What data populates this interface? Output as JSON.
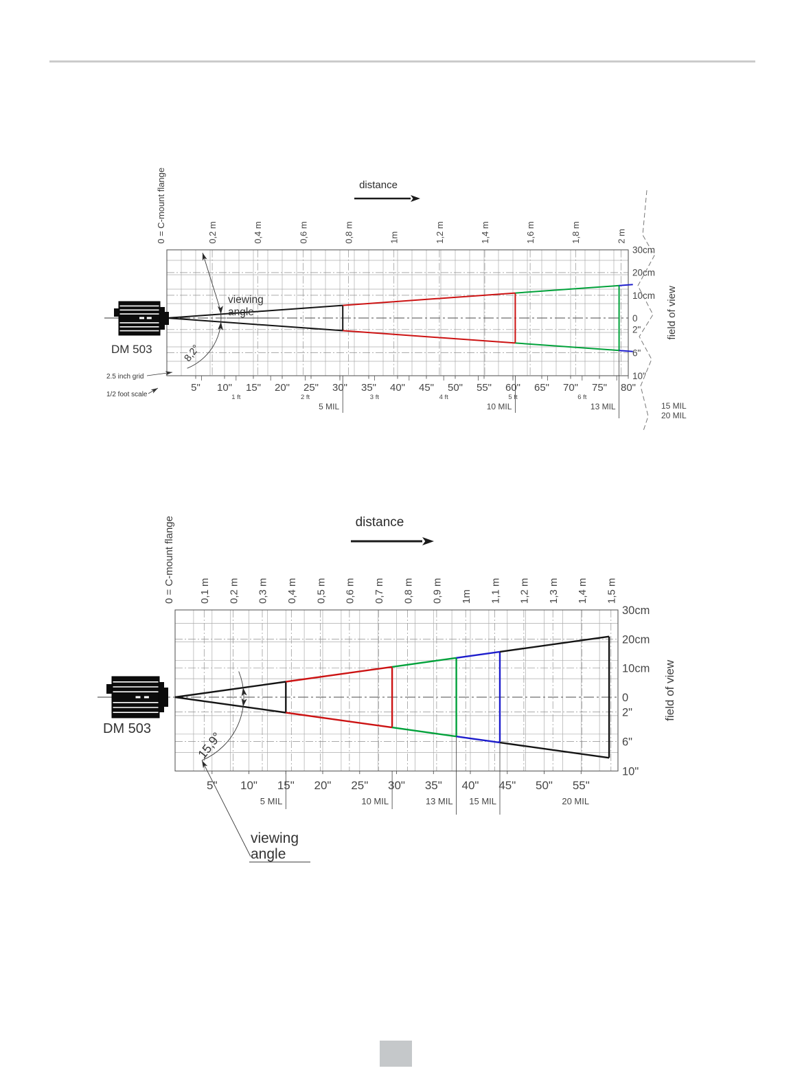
{
  "page": {
    "description": "Camera field-of-view diagrams page"
  },
  "chart_data": [
    {
      "type": "line",
      "name": "fov-diagram-0-2m",
      "camera_model": "DM 503",
      "flange_label": "0 = C-mount flange",
      "distance_label": "distance",
      "fov_label": "field of view",
      "viewing_angle_deg": 8.2,
      "viewing_angle_label": "8,2°",
      "viewing_angle_text": [
        "viewing",
        "angle"
      ],
      "notes": [
        "2.5 inch grid",
        "1/2 foot scale"
      ],
      "x_max_in": 80,
      "x_axis_m": [
        {
          "v": 0.2,
          "label": "0,2 m"
        },
        {
          "v": 0.4,
          "label": "0,4 m"
        },
        {
          "v": 0.6,
          "label": "0,6 m"
        },
        {
          "v": 0.8,
          "label": "0,8 m"
        },
        {
          "v": 1.0,
          "label": "1m"
        },
        {
          "v": 1.2,
          "label": "1,2 m"
        },
        {
          "v": 1.4,
          "label": "1,4 m"
        },
        {
          "v": 1.6,
          "label": "1,6 m"
        },
        {
          "v": 1.8,
          "label": "1,8 m"
        },
        {
          "v": 2.0,
          "label": "2 m"
        }
      ],
      "x_axis_in": [
        {
          "v": 5,
          "label": "5\""
        },
        {
          "v": 10,
          "label": "10\""
        },
        {
          "v": 15,
          "label": "15\""
        },
        {
          "v": 20,
          "label": "20\""
        },
        {
          "v": 25,
          "label": "25\""
        },
        {
          "v": 30,
          "label": "30\""
        },
        {
          "v": 35,
          "label": "35\""
        },
        {
          "v": 40,
          "label": "40\""
        },
        {
          "v": 45,
          "label": "45\""
        },
        {
          "v": 50,
          "label": "50\""
        },
        {
          "v": 55,
          "label": "55\""
        },
        {
          "v": 60,
          "label": "60\""
        },
        {
          "v": 65,
          "label": "65\""
        },
        {
          "v": 70,
          "label": "70\""
        },
        {
          "v": 75,
          "label": "75\""
        },
        {
          "v": 80,
          "label": "80\""
        }
      ],
      "ft_marks": [
        {
          "v": 12,
          "label": "1 ft"
        },
        {
          "v": 24,
          "label": "2 ft"
        },
        {
          "v": 36,
          "label": "3 ft"
        },
        {
          "v": 48,
          "label": "4 ft"
        },
        {
          "v": 60,
          "label": "5 ft"
        },
        {
          "v": 72,
          "label": "6 ft"
        }
      ],
      "y_axis": [
        {
          "cm": 30,
          "label": "30cm"
        },
        {
          "cm": 20,
          "label": "20cm"
        },
        {
          "cm": 10,
          "label": "10cm"
        },
        {
          "cm": 0,
          "label": "0"
        },
        {
          "cm": -5.08,
          "label": "2\""
        },
        {
          "cm": -15.24,
          "label": "6\""
        },
        {
          "cm": -25.4,
          "label": "10\""
        }
      ],
      "mil_segments": [
        {
          "label": "5 MIL",
          "to_in": 30.5,
          "color": "#141414",
          "end_vertical": true
        },
        {
          "label": "10 MIL",
          "to_in": 60.4,
          "color": "#cc1212",
          "end_vertical": true
        },
        {
          "label": "13 MIL",
          "to_in": 78.4,
          "color": "#00a13a",
          "end_vertical": true,
          "drop": true
        },
        {
          "label": null,
          "to_in": 80.8,
          "color": "#1d1dcc",
          "end_vertical": false
        }
      ],
      "mil_offchart": [
        "15 MIL",
        "20 MIL"
      ]
    },
    {
      "type": "line",
      "name": "fov-diagram-0-1.5m",
      "camera_model": "DM 503",
      "flange_label": "0 = C-mount flange",
      "distance_label": "distance",
      "fov_label": "field of view",
      "viewing_angle_deg": 15.9,
      "viewing_angle_label": "15,9°",
      "viewing_angle_text": [
        "viewing",
        "angle"
      ],
      "notes": [],
      "x_max_in": 60,
      "x_axis_m": [
        {
          "v": 0.1,
          "label": "0,1 m"
        },
        {
          "v": 0.2,
          "label": "0,2 m"
        },
        {
          "v": 0.3,
          "label": "0,3 m"
        },
        {
          "v": 0.4,
          "label": "0,4 m"
        },
        {
          "v": 0.5,
          "label": "0,5 m"
        },
        {
          "v": 0.6,
          "label": "0,6 m"
        },
        {
          "v": 0.7,
          "label": "0,7 m"
        },
        {
          "v": 0.8,
          "label": "0,8 m"
        },
        {
          "v": 0.9,
          "label": "0,9 m"
        },
        {
          "v": 1.0,
          "label": "1m"
        },
        {
          "v": 1.1,
          "label": "1,1 m"
        },
        {
          "v": 1.2,
          "label": "1,2 m"
        },
        {
          "v": 1.3,
          "label": "1,3 m"
        },
        {
          "v": 1.4,
          "label": "1,4 m"
        },
        {
          "v": 1.5,
          "label": "1,5 m"
        }
      ],
      "x_axis_in": [
        {
          "v": 5,
          "label": "5\""
        },
        {
          "v": 10,
          "label": "10\""
        },
        {
          "v": 15,
          "label": "15\""
        },
        {
          "v": 20,
          "label": "20\""
        },
        {
          "v": 25,
          "label": "25\""
        },
        {
          "v": 30,
          "label": "30\""
        },
        {
          "v": 35,
          "label": "35\""
        },
        {
          "v": 40,
          "label": "40\""
        },
        {
          "v": 45,
          "label": "45\""
        },
        {
          "v": 50,
          "label": "50\""
        },
        {
          "v": 55,
          "label": "55\""
        }
      ],
      "ft_marks": [],
      "y_axis": [
        {
          "cm": 30,
          "label": "30cm"
        },
        {
          "cm": 20,
          "label": "20cm"
        },
        {
          "cm": 10,
          "label": "10cm"
        },
        {
          "cm": 0,
          "label": "0"
        },
        {
          "cm": -5.08,
          "label": "2\""
        },
        {
          "cm": -15.24,
          "label": "6\""
        },
        {
          "cm": -25.4,
          "label": "10\""
        }
      ],
      "mil_segments": [
        {
          "label": "5 MIL",
          "to_in": 15,
          "color": "#141414",
          "end_vertical": true
        },
        {
          "label": "10 MIL",
          "to_in": 29.4,
          "color": "#cc1212",
          "end_vertical": true
        },
        {
          "label": "13 MIL",
          "to_in": 38.1,
          "color": "#00a13a",
          "end_vertical": true,
          "drop": true
        },
        {
          "label": "15 MIL",
          "to_in": 44,
          "color": "#1d1dcc",
          "end_vertical": true,
          "drop": true
        },
        {
          "label": "20 MIL",
          "to_in": 58.8,
          "color": "#141414",
          "end_vertical": true,
          "line": false,
          "label_dx": -24
        }
      ],
      "mil_offchart": []
    }
  ]
}
